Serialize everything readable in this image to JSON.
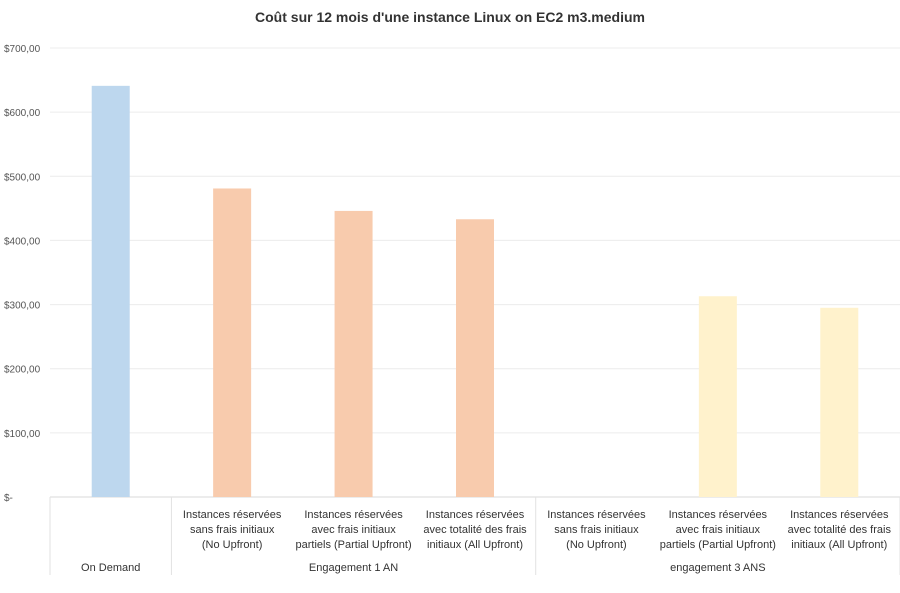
{
  "chart_data": {
    "type": "bar",
    "title": "Coût sur 12 mois d'une instance Linux on EC2 m3.medium",
    "xlabel": "",
    "ylabel": "",
    "ylim": [
      0,
      700
    ],
    "grid": true,
    "legend": "none",
    "y_ticks": [
      {
        "value": 0,
        "label": "$-"
      },
      {
        "value": 100,
        "label": "$100,00"
      },
      {
        "value": 200,
        "label": "$200,00"
      },
      {
        "value": 300,
        "label": "$300,00"
      },
      {
        "value": 400,
        "label": "$400,00"
      },
      {
        "value": 500,
        "label": "$500,00"
      },
      {
        "value": 600,
        "label": "$600,00"
      },
      {
        "value": 700,
        "label": "$700,00"
      }
    ],
    "categories": [
      {
        "lines": [],
        "value": 641,
        "color": "#bdd7ee"
      },
      {
        "lines": [
          "Instances réservées",
          "sans frais initiaux",
          "(No Upfront)"
        ],
        "value": 481,
        "color": "#f8cbad"
      },
      {
        "lines": [
          "Instances réservées",
          "avec frais initiaux",
          "partiels (Partial Upfront)"
        ],
        "value": 446,
        "color": "#f8cbad"
      },
      {
        "lines": [
          "Instances réservées",
          "avec totalité des frais",
          "initiaux (All Upfront)"
        ],
        "value": 433,
        "color": "#f8cbad"
      },
      {
        "lines": [
          "Instances réservées",
          "sans frais initiaux",
          "(No Upfront)"
        ],
        "value": null,
        "color": "#fff2cc"
      },
      {
        "lines": [
          "Instances réservées",
          "avec frais initiaux",
          "partiels (Partial Upfront)"
        ],
        "value": 313,
        "color": "#fff2cc"
      },
      {
        "lines": [
          "Instances réservées",
          "avec totalité des frais",
          "initiaux (All Upfront)"
        ],
        "value": 295,
        "color": "#fff2cc"
      }
    ],
    "groups": [
      {
        "label": "On Demand",
        "start": 0,
        "end": 0
      },
      {
        "label": "Engagement 1 AN",
        "start": 1,
        "end": 3
      },
      {
        "label": "engagement 3 ANS",
        "start": 4,
        "end": 6
      }
    ]
  }
}
